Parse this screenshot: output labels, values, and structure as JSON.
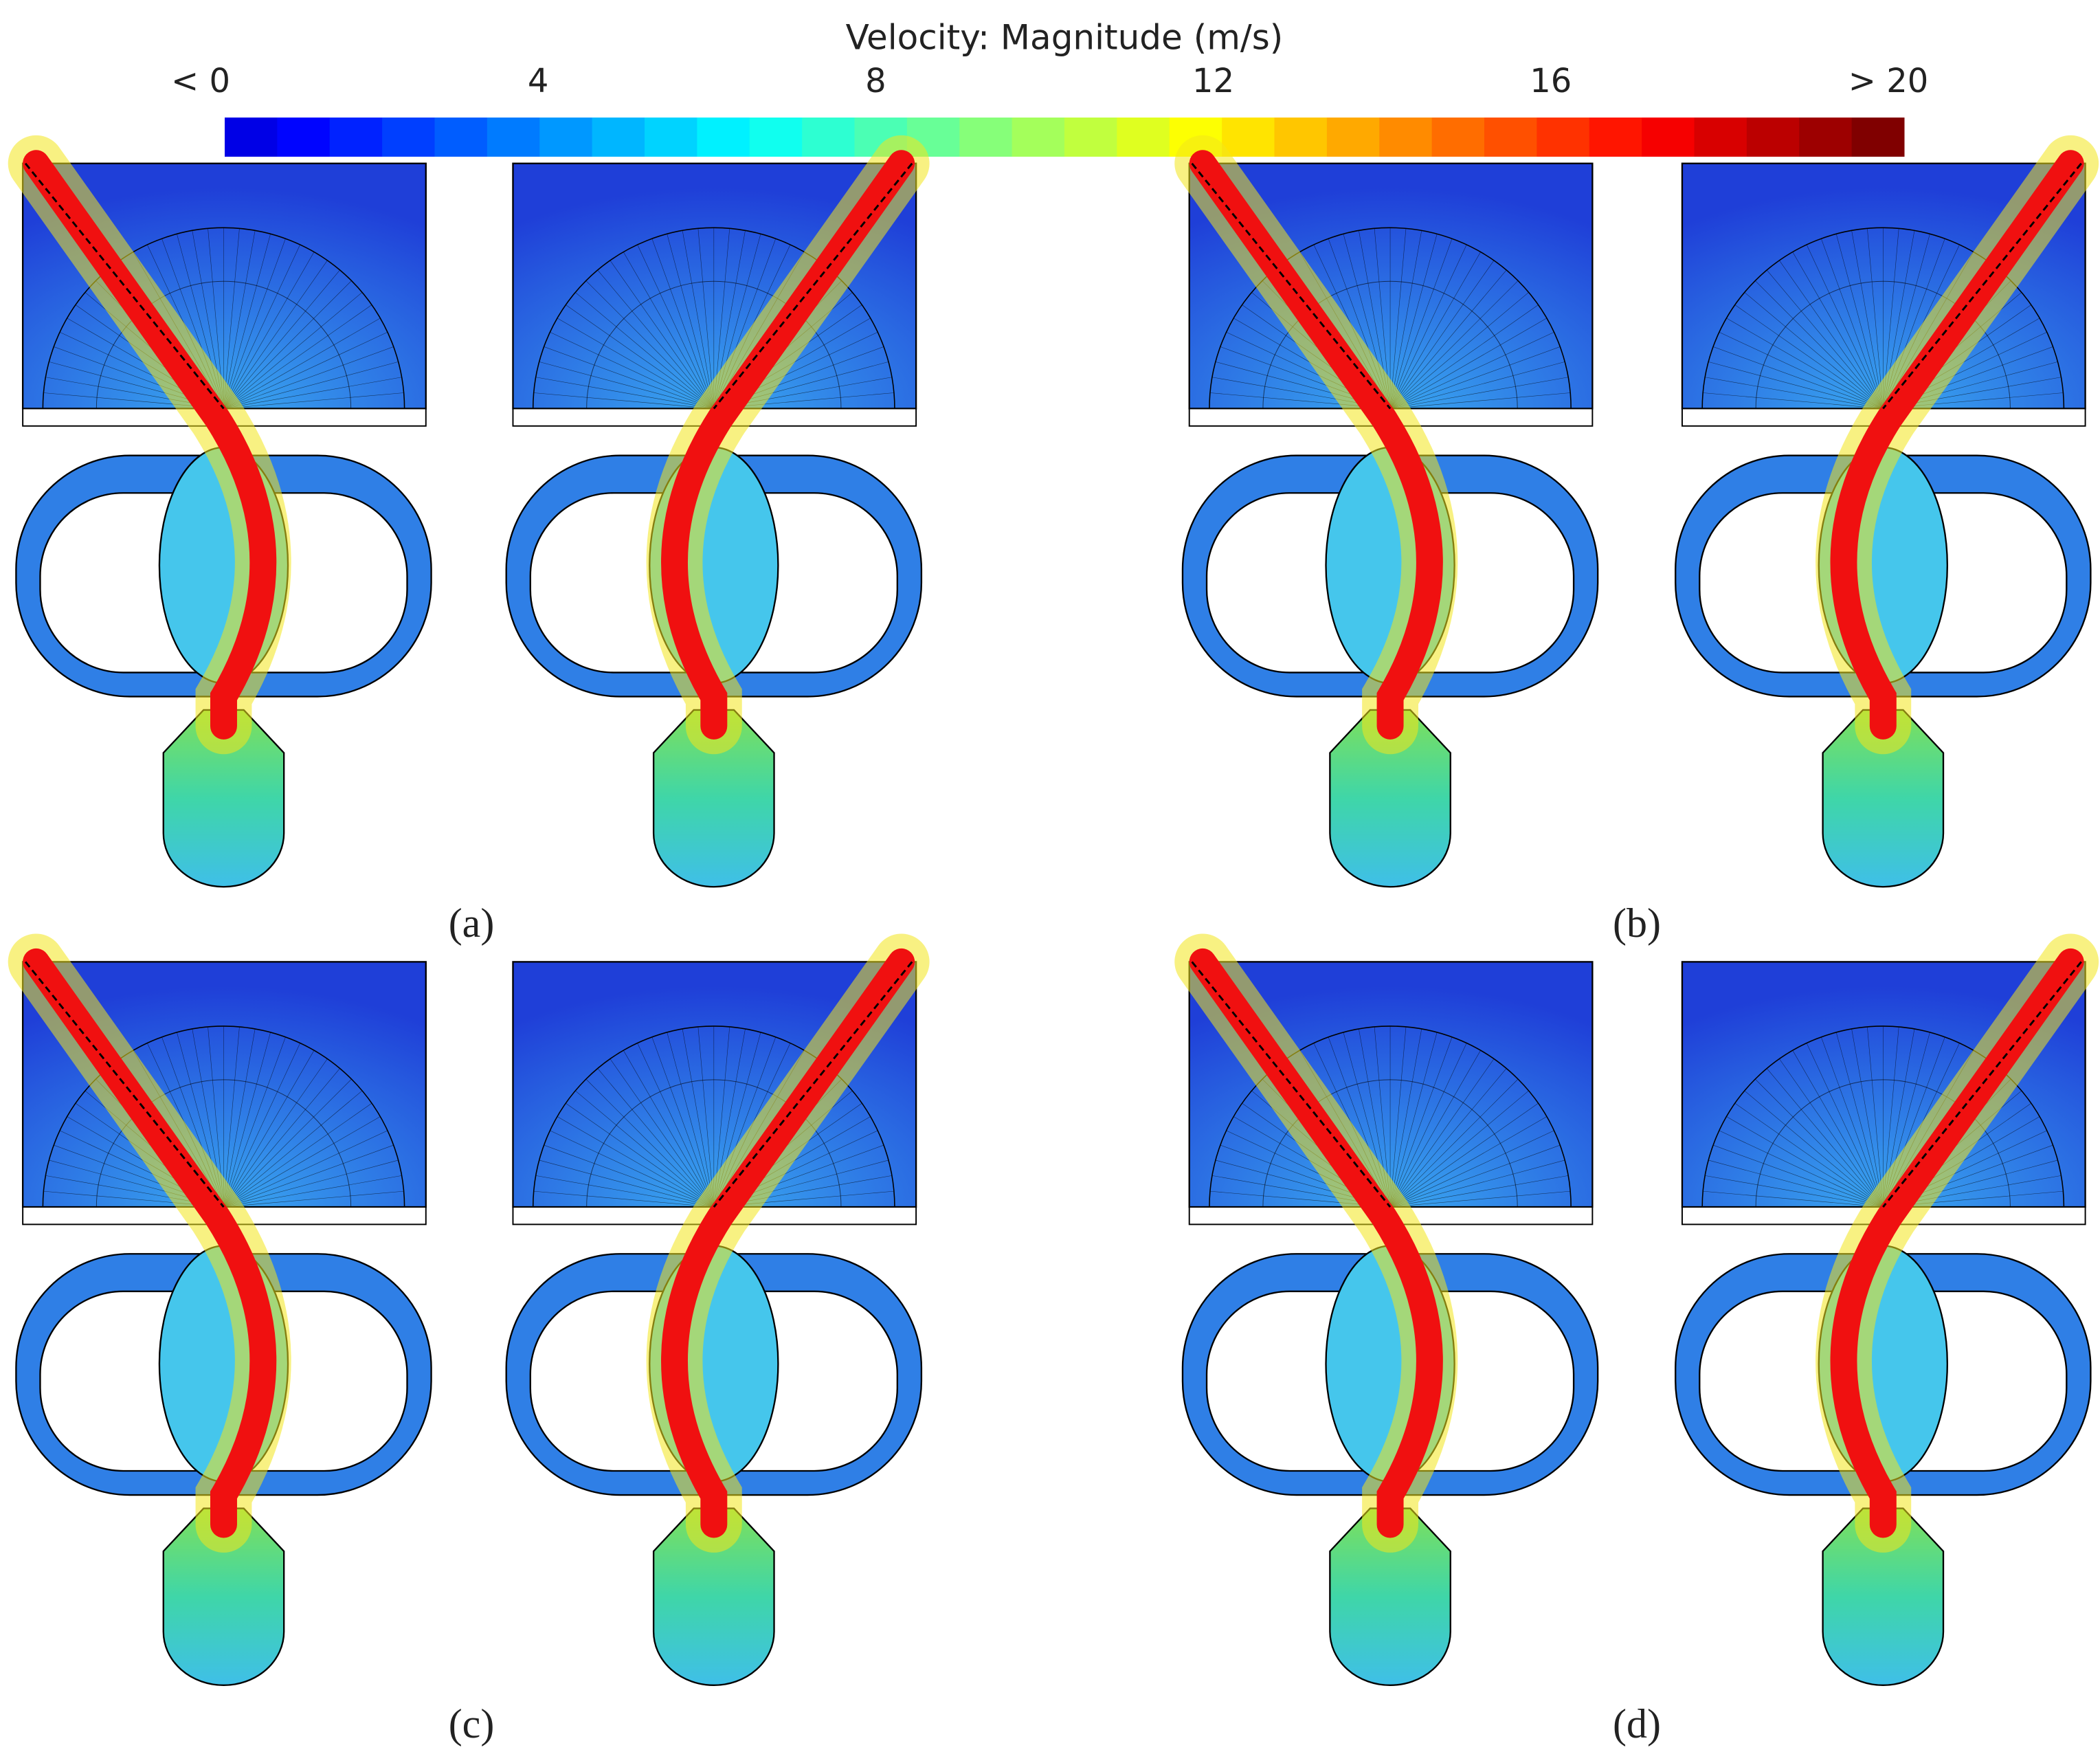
{
  "colorbar": {
    "title": "Velocity: Magnitude (m/s)",
    "lim": [
      0,
      20
    ],
    "ticks": [
      {
        "value": 0,
        "label": "< 0"
      },
      4,
      8,
      12,
      16,
      {
        "value": 20,
        "label": "> 20"
      }
    ]
  },
  "panels": [
    {
      "label": "(a)"
    },
    {
      "label": "(b)"
    },
    {
      "label": "(c)"
    },
    {
      "label": "(d)"
    }
  ]
}
